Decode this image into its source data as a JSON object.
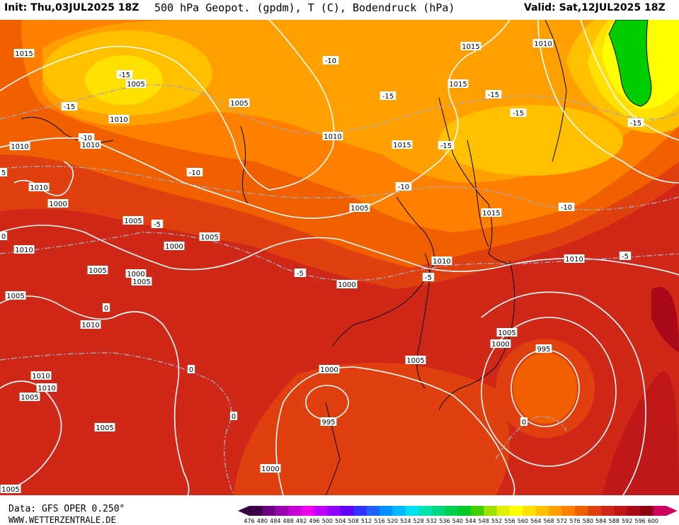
{
  "header": {
    "init": "Init: Thu,03JUL2025 18Z",
    "title": "500 hPa Geopot. (gpdm), T (C), Bodendruck (hPa)",
    "valid": "Valid: Sat,12JUL2025 18Z"
  },
  "footer": {
    "data_source": "Data: GFS OPER 0.250°",
    "website": "WWW.WETTERZENTRALE.DE"
  },
  "color_scale": {
    "values": [
      "476",
      "480",
      "484",
      "488",
      "492",
      "496",
      "500",
      "504",
      "508",
      "512",
      "516",
      "520",
      "524",
      "528",
      "532",
      "536",
      "540",
      "544",
      "548",
      "552",
      "556",
      "560",
      "564",
      "568",
      "572",
      "576",
      "580",
      "584",
      "588",
      "592",
      "596",
      "600"
    ],
    "colors": [
      "#3a0044",
      "#6a0080",
      "#9a00b0",
      "#c800d8",
      "#f000f0",
      "#c000ff",
      "#9000ff",
      "#6000ff",
      "#3030ff",
      "#2060ff",
      "#0090ff",
      "#00b8ff",
      "#00e0f0",
      "#00e0b0",
      "#00d880",
      "#00d050",
      "#00c828",
      "#40d000",
      "#a0e000",
      "#e0f000",
      "#ffff00",
      "#ffe000",
      "#ffc000",
      "#ffa000",
      "#ff8000",
      "#f06000",
      "#e04010",
      "#d02818",
      "#c01818",
      "#a80818",
      "#900010",
      "#d00060"
    ]
  },
  "pressure_labels": [
    {
      "text": "1015"
    },
    {
      "text": "1005"
    },
    {
      "text": "1010"
    },
    {
      "text": "1010"
    },
    {
      "text": "1010"
    },
    {
      "text": "1000"
    },
    {
      "text": "1005"
    },
    {
      "text": "1010"
    },
    {
      "text": "1005"
    },
    {
      "text": "1000"
    },
    {
      "text": "1005"
    },
    {
      "text": "1005"
    },
    {
      "text": "1010"
    },
    {
      "text": "1010"
    },
    {
      "text": "1010"
    },
    {
      "text": "1005"
    },
    {
      "text": "1010"
    },
    {
      "text": "1005"
    },
    {
      "text": "1005"
    },
    {
      "text": "1010"
    },
    {
      "text": "1015"
    },
    {
      "text": "1015"
    },
    {
      "text": "1015"
    },
    {
      "text": "1010"
    },
    {
      "text": "1005"
    },
    {
      "text": "1005"
    },
    {
      "text": "1000"
    },
    {
      "text": "1000"
    },
    {
      "text": "1005"
    },
    {
      "text": "1000"
    },
    {
      "text": "995"
    },
    {
      "text": "1000"
    },
    {
      "text": "1010"
    },
    {
      "text": "1015"
    },
    {
      "text": "1010"
    },
    {
      "text": "1005"
    },
    {
      "text": "1000"
    },
    {
      "text": "995"
    },
    {
      "text": "1005"
    }
  ],
  "temperature_labels": [
    {
      "text": "-15"
    },
    {
      "text": "-15"
    },
    {
      "text": "-10"
    },
    {
      "text": "-10"
    },
    {
      "text": "-10"
    },
    {
      "text": "-15"
    },
    {
      "text": "-15"
    },
    {
      "text": "-15"
    },
    {
      "text": "-15"
    },
    {
      "text": "-10"
    },
    {
      "text": "-15"
    },
    {
      "text": "-10"
    },
    {
      "text": "-5"
    },
    {
      "text": "-5"
    },
    {
      "text": "-5"
    },
    {
      "text": "-5"
    },
    {
      "text": "0"
    },
    {
      "text": "0"
    },
    {
      "text": "0"
    },
    {
      "text": "0"
    },
    {
      "text": "5"
    },
    {
      "text": "0"
    }
  ]
}
